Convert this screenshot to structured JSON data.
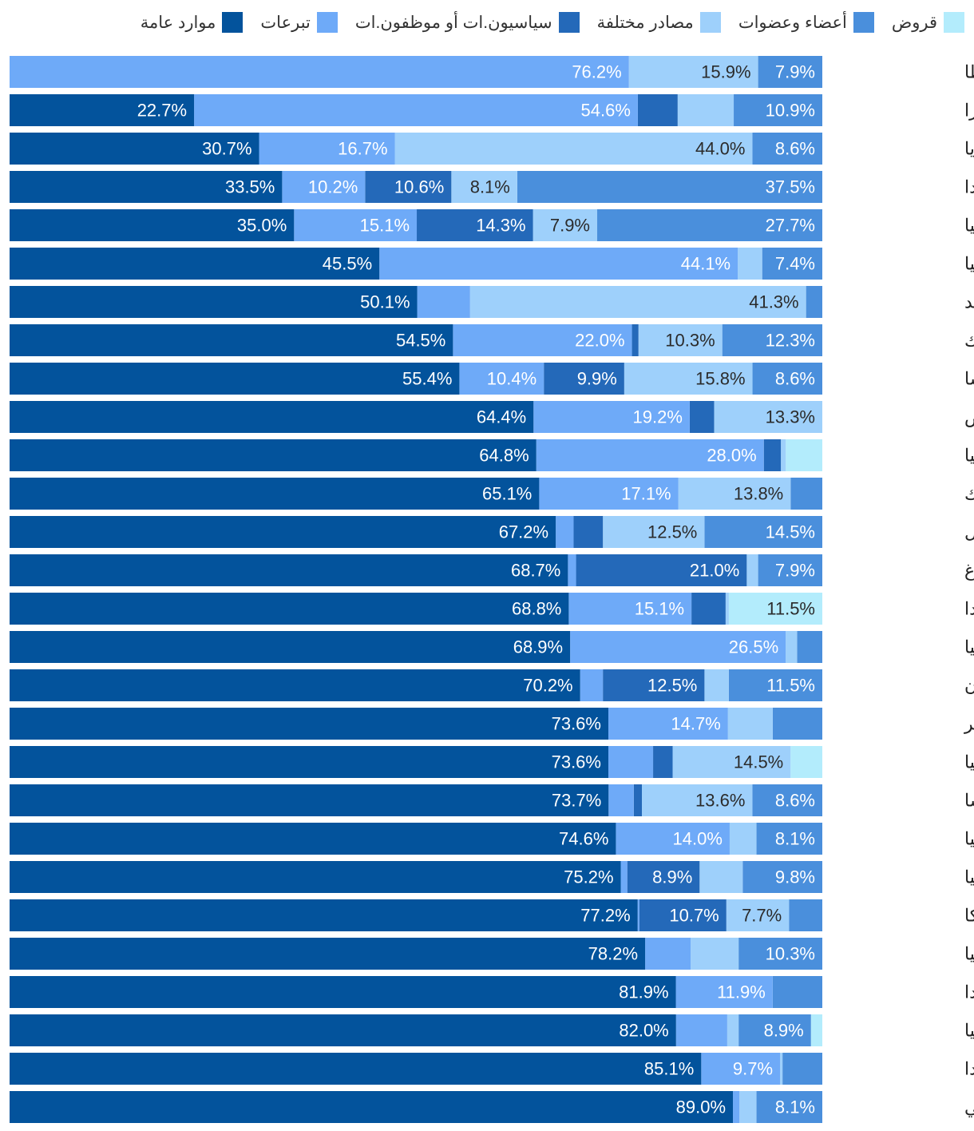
{
  "chart_data": {
    "type": "bar",
    "orientation": "horizontal",
    "stacked": true,
    "title": "",
    "xlabel": "",
    "ylabel": "",
    "xlim": [
      0,
      100
    ],
    "legend_position": "top-right",
    "value_suffix": "%",
    "categories": [
      "مالطا",
      "سويسرا",
      "بلغاريا",
      "هولندا",
      "ألمانيا",
      "إيطاليا",
      "السويد",
      "الدانمارك",
      "فرنسا",
      "قبرص",
      "إستونيا",
      "جمهورية التشيك",
      "البرتغال",
      "لوكسمبورغ",
      "بولندا",
      "ليتوانيا",
      "اليونان",
      "المجر",
      "سلوفاكيا",
      "النمسا",
      "سلوفينيا",
      "إسبانيا",
      "بلجيكا",
      "كرواتيا",
      "فنلندا",
      "رومانيا",
      "إيرلندا",
      "البرلمان الأوروبي"
    ],
    "series": [
      {
        "name": "قروض",
        "color": "#b3ecfc",
        "values": [
          0,
          0,
          0,
          0,
          0,
          0,
          0,
          0,
          0,
          0,
          4.5,
          0,
          0,
          0,
          11.5,
          0,
          0,
          0,
          3.9,
          0,
          0,
          0,
          0,
          0,
          0,
          1.4,
          0,
          0
        ]
      },
      {
        "name": "أعضاء وعضوات",
        "color": "#4a8fdc",
        "values": [
          7.9,
          10.9,
          8.6,
          37.5,
          27.7,
          7.4,
          2.0,
          12.3,
          8.6,
          0,
          0,
          3.9,
          14.5,
          7.9,
          0,
          3.1,
          11.5,
          6.1,
          0,
          8.6,
          8.1,
          9.8,
          4.1,
          10.3,
          6.1,
          8.9,
          4.9,
          8.1
        ]
      },
      {
        "name": "مصادر مختلفة",
        "color": "#9ed0fb",
        "values": [
          15.9,
          6.9,
          44.0,
          8.1,
          7.9,
          3.0,
          41.3,
          10.3,
          15.8,
          13.3,
          0.6,
          13.8,
          12.5,
          1.4,
          0.4,
          1.4,
          3.0,
          5.5,
          14.5,
          13.6,
          3.3,
          5.3,
          7.7,
          5.9,
          0,
          1.4,
          0.3,
          2.1
        ]
      },
      {
        "name": "سياسيون.ات أو موظفون.ات",
        "color": "#2469b9",
        "values": [
          0,
          4.9,
          0,
          10.6,
          14.3,
          0,
          0,
          0.8,
          9.9,
          3.0,
          2.1,
          0,
          3.6,
          21.0,
          4.2,
          0,
          12.5,
          0,
          2.4,
          1.0,
          0,
          8.9,
          10.7,
          0,
          0,
          0,
          0,
          0
        ]
      },
      {
        "name": "تبرعات",
        "color": "#6eaaf8",
        "values": [
          76.2,
          54.6,
          16.7,
          10.2,
          15.1,
          44.1,
          6.5,
          22.0,
          10.4,
          19.2,
          28.0,
          17.1,
          2.2,
          1.0,
          15.1,
          26.5,
          2.8,
          14.7,
          5.5,
          3.1,
          14.0,
          0.8,
          0.2,
          5.6,
          11.9,
          6.3,
          9.7,
          0.8
        ]
      },
      {
        "name": "موارد عامة",
        "color": "#03539c",
        "values": [
          0,
          22.7,
          30.7,
          33.5,
          35.0,
          45.5,
          50.1,
          54.5,
          55.4,
          64.4,
          64.8,
          65.1,
          67.2,
          68.7,
          68.8,
          68.9,
          70.2,
          73.6,
          73.6,
          73.7,
          74.6,
          75.2,
          77.2,
          78.2,
          81.9,
          82.0,
          85.1,
          89.0
        ]
      }
    ],
    "data_labels": [
      [
        "7.9%",
        "15.9%",
        "76.2%"
      ],
      [
        "10.9%",
        "54.6%",
        "22.7%"
      ],
      [
        "8.6%",
        "44.0%",
        "16.7%",
        "30.7%"
      ],
      [
        "37.5%",
        "8.1%",
        "10.6%",
        "10.2%",
        "33.5%"
      ],
      [
        "27.7%",
        "7.9%",
        "14.3%",
        "15.1%",
        "35.0%"
      ],
      [
        "7.4%",
        "44.1%",
        "45.5%"
      ],
      [
        "41.3%",
        "50.1%"
      ],
      [
        "12.3%",
        "10.3%",
        "22.0%",
        "54.5%"
      ],
      [
        "8.6%",
        "15.8%",
        "9.9%",
        "10.4%",
        "55.4%"
      ],
      [
        "13.3%",
        "19.2%",
        "64.4%"
      ],
      [
        "28.0%",
        "64.8%"
      ],
      [
        "13.8%",
        "17.1%",
        "65.1%"
      ],
      [
        "14.5%",
        "12.5%",
        "67.2%"
      ],
      [
        "7.9%",
        "21.0%",
        "68.7%"
      ],
      [
        "11.5%",
        "15.1%",
        "68.8%"
      ],
      [
        "26.5%",
        "68.9%"
      ],
      [
        "11.5%",
        "12.5%",
        "70.2%"
      ],
      [
        "14.7%",
        "73.6%"
      ],
      [
        "14.5%",
        "73.6%"
      ],
      [
        "8.6%",
        "13.6%",
        "73.7%"
      ],
      [
        "8.1%",
        "14.0%",
        "74.6%"
      ],
      [
        "9.8%",
        "8.9%",
        "75.2%"
      ],
      [
        "7.7%",
        "10.7%",
        "77.2%"
      ],
      [
        "10.3%",
        "78.2%"
      ],
      [
        "11.9%",
        "81.9%"
      ],
      [
        "8.9%",
        "82.0%"
      ],
      [
        "9.7%",
        "85.1%"
      ],
      [
        "8.1%",
        "89.0%"
      ]
    ]
  }
}
